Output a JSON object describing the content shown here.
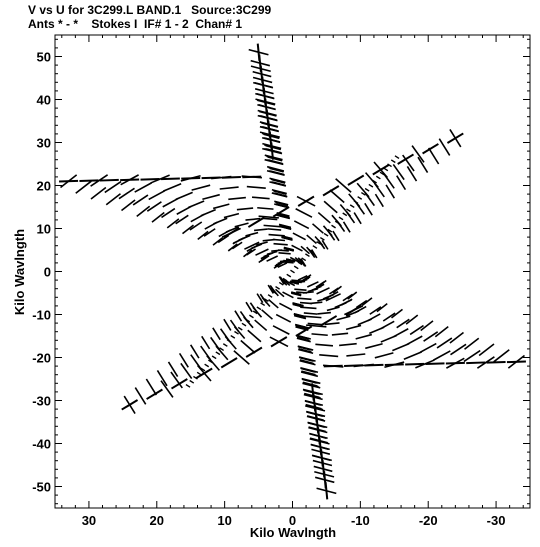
{
  "header": {
    "line1": "V vs U for 3C299.L BAND.1   Source:3C299",
    "line2": "Ants * - *    Stokes I  IF# 1 - 2  Chan# 1"
  },
  "chart_data": {
    "type": "scatter",
    "title": "V vs U for 3C299.L BAND.1   Source:3C299",
    "subtitle": "Ants * - *    Stokes I  IF# 1 - 2  Chan# 1",
    "xlabel": "Kilo Wavlngth",
    "ylabel": "Kilo Wavlngth",
    "xlim": [
      35,
      -35
    ],
    "ylim": [
      -55,
      55
    ],
    "x_ticks": [
      30,
      20,
      10,
      0,
      -10,
      -20,
      -30
    ],
    "x_tick_labels": [
      "30",
      "20",
      "10",
      "0",
      "-10",
      "-20",
      "-30"
    ],
    "y_ticks": [
      50,
      40,
      30,
      20,
      10,
      0,
      -10,
      -20,
      -30,
      -40,
      -50
    ],
    "y_tick_labels": [
      "50",
      "40",
      "30",
      "20",
      "10",
      "0",
      "-10",
      "-20",
      "-30",
      "-40",
      "-50"
    ],
    "color": "#000000",
    "uv_arms": [
      {
        "name": "",
        "end": [
          3,
          28
        ],
        "tip": [
          5,
          51
        ]
      },
      {
        "name": "",
        "end": [
          6,
          22
        ],
        "tip": [
          33,
          21
        ]
      },
      {
        "name": "",
        "end": [
          9,
          9
        ],
        "tip": [
          -24,
          31
        ]
      },
      {
        "name": "",
        "end": [
          -3,
          -28
        ],
        "tip": [
          -5,
          -51
        ]
      },
      {
        "name": "",
        "end": [
          -6,
          -22
        ],
        "tip": [
          -33,
          -21
        ]
      },
      {
        "name": "",
        "end": [
          -9,
          -9
        ],
        "tip": [
          24,
          -31
        ]
      }
    ]
  }
}
